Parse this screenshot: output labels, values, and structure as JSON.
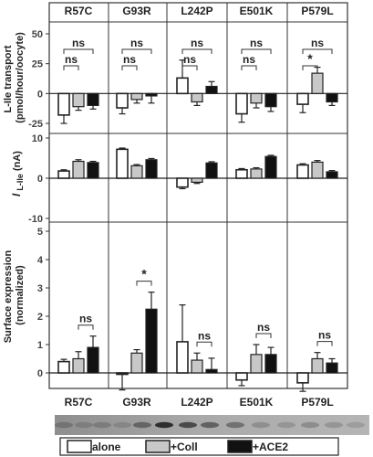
{
  "chart_data": [
    {
      "type": "bar",
      "panel": "transport",
      "ylabel_line1": "L-Ile transport",
      "ylabel_line2": "(pmol/hour/oocyte)",
      "ylim": [
        -30,
        60
      ],
      "yticks": [
        "50",
        "25",
        "0",
        "-25"
      ],
      "ytick_values": [
        50,
        25,
        0,
        -25
      ],
      "categories": [
        "R57C",
        "G93R",
        "L242P",
        "E501K",
        "P579L"
      ],
      "series": [
        {
          "name": "alone",
          "values": [
            -18,
            -12,
            13,
            -17,
            -9
          ],
          "errors": [
            7,
            5,
            15,
            7,
            7
          ]
        },
        {
          "name": "+Coll",
          "values": [
            -11,
            -5,
            -7,
            -8,
            17
          ],
          "errors": [
            3,
            3,
            3,
            4,
            5
          ]
        },
        {
          "name": "+ACE2",
          "values": [
            -10,
            -2,
            6,
            -11,
            -7
          ],
          "errors": [
            3,
            6,
            4,
            4,
            3
          ]
        }
      ],
      "annotations": [
        {
          "category": "R57C",
          "from": "alone",
          "to": "+Coll",
          "text": "ns"
        },
        {
          "category": "R57C",
          "from": "alone",
          "to": "+ACE2",
          "text": "ns"
        },
        {
          "category": "G93R",
          "from": "alone",
          "to": "+Coll",
          "text": "ns"
        },
        {
          "category": "G93R",
          "from": "alone",
          "to": "+ACE2",
          "text": "ns"
        },
        {
          "category": "L242P",
          "from": "alone",
          "to": "+Coll",
          "text": "ns"
        },
        {
          "category": "L242P",
          "from": "alone",
          "to": "+ACE2",
          "text": "ns"
        },
        {
          "category": "E501K",
          "from": "alone",
          "to": "+Coll",
          "text": "ns"
        },
        {
          "category": "E501K",
          "from": "alone",
          "to": "+ACE2",
          "text": "ns"
        },
        {
          "category": "P579L",
          "from": "alone",
          "to": "+Coll",
          "text": "*"
        },
        {
          "category": "P579L",
          "from": "alone",
          "to": "+ACE2",
          "text": "ns"
        }
      ]
    },
    {
      "type": "bar",
      "panel": "current",
      "ylabel_main": "I",
      "ylabel_sub": " L-Ile",
      "ylabel_unit": " (nA)",
      "ylim": [
        -10,
        12
      ],
      "yticks": [
        "10",
        "0",
        "-10"
      ],
      "ytick_values": [
        10,
        0,
        -10
      ],
      "categories": [
        "R57C",
        "G93R",
        "L242P",
        "E501K",
        "P579L"
      ],
      "series": [
        {
          "name": "alone",
          "values": [
            1.8,
            7.2,
            -2.2,
            2.1,
            3.3
          ],
          "errors": [
            0.3,
            0.3,
            0.4,
            0.3,
            0.3
          ]
        },
        {
          "name": "+Coll",
          "values": [
            4.2,
            3.1,
            -1.0,
            2.3,
            4.0
          ],
          "errors": [
            0.4,
            0.3,
            0.3,
            0.3,
            0.4
          ]
        },
        {
          "name": "+ACE2",
          "values": [
            3.9,
            4.6,
            3.8,
            5.4,
            1.6
          ],
          "errors": [
            0.3,
            0.3,
            0.3,
            0.3,
            0.3
          ]
        }
      ]
    },
    {
      "type": "bar",
      "panel": "surface",
      "ylabel_line1": "Surface expression",
      "ylabel_line2": "(normalized)",
      "ylim": [
        -0.5,
        5
      ],
      "yticks": [
        "5",
        "4",
        "3",
        "2",
        "1",
        "0"
      ],
      "ytick_values": [
        5,
        4,
        3,
        2,
        1,
        0
      ],
      "categories": [
        "R57C",
        "G93R",
        "L242P",
        "E501K",
        "P579L"
      ],
      "series": [
        {
          "name": "alone",
          "values": [
            0.4,
            -0.05,
            1.1,
            -0.25,
            -0.35
          ],
          "errors": [
            0.08,
            0.55,
            1.3,
            0.2,
            0.3
          ]
        },
        {
          "name": "+Coll",
          "values": [
            0.5,
            0.7,
            0.45,
            0.65,
            0.5
          ],
          "errors": [
            0.25,
            0.12,
            0.25,
            0.35,
            0.22
          ]
        },
        {
          "name": "+ACE2",
          "values": [
            0.9,
            2.25,
            0.12,
            0.65,
            0.35
          ],
          "errors": [
            0.4,
            0.6,
            0.4,
            0.25,
            0.15
          ]
        }
      ],
      "annotations": [
        {
          "category": "R57C",
          "from": "+Coll",
          "to": "+ACE2",
          "text": "ns"
        },
        {
          "category": "G93R",
          "from": "+Coll",
          "to": "+ACE2",
          "text": "*"
        },
        {
          "category": "L242P",
          "from": "+Coll",
          "to": "+ACE2",
          "text": "ns"
        },
        {
          "category": "E501K",
          "from": "+Coll",
          "to": "+ACE2",
          "text": "ns"
        },
        {
          "category": "P579L",
          "from": "+Coll",
          "to": "+ACE2",
          "text": "ns"
        }
      ]
    }
  ],
  "column_headers_top": [
    "R57C",
    "G93R",
    "L242P",
    "E501K",
    "P579L"
  ],
  "column_headers_bottom": [
    "R57C",
    "G93R",
    "L242P",
    "E501K",
    "P579L"
  ],
  "legend": {
    "items": [
      {
        "label": "alone",
        "fill": "#ffffff"
      },
      {
        "label": "+Coll",
        "fill": "#c8c8c8"
      },
      {
        "label": "+ACE2",
        "fill": "#111111"
      }
    ]
  },
  "colors": {
    "alone": "#ffffff",
    "coll": "#c8c8c8",
    "ace2": "#111111",
    "stroke": "#222222",
    "blot_bg": "#9a9a9a"
  }
}
